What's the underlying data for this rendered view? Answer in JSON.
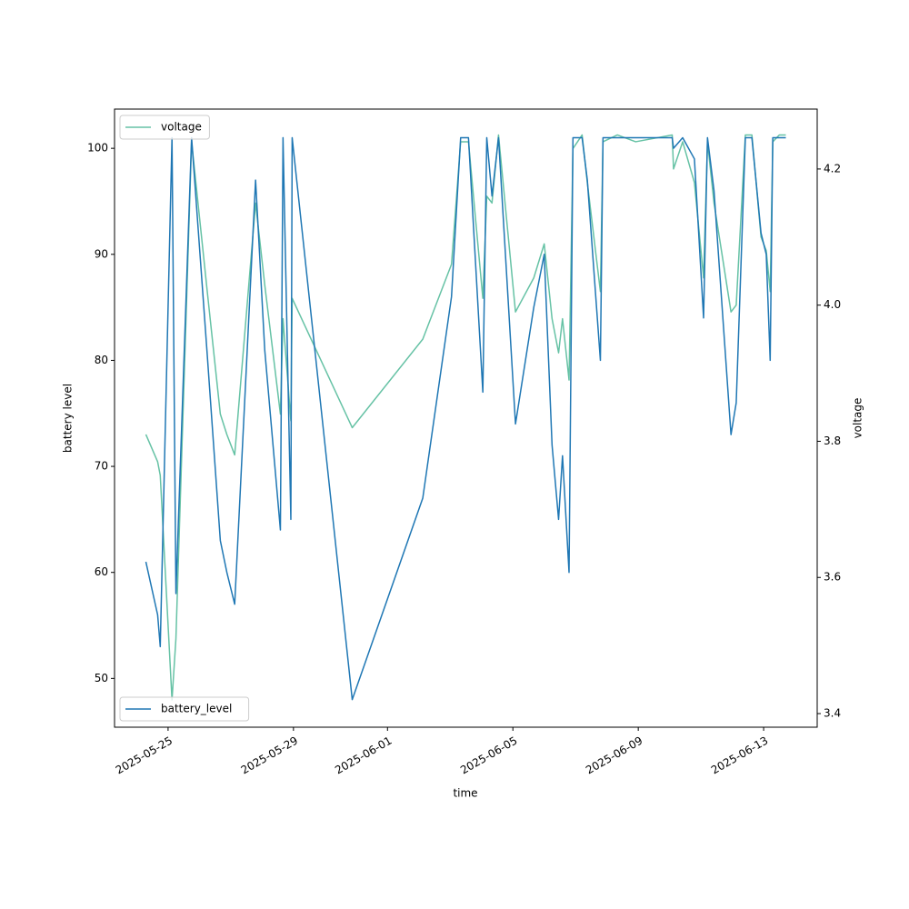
{
  "chart_data": {
    "type": "line",
    "x_label": "time",
    "y_label": "battery level",
    "y2_label": "voltage",
    "x": [
      "2025-05-24 07:00",
      "2025-05-24 16:00",
      "2025-05-24 18:00",
      "2025-05-25 03:00",
      "2025-05-25 06:00",
      "2025-05-25 18:00",
      "2025-05-26 06:00",
      "2025-05-26 16:00",
      "2025-05-26 21:00",
      "2025-05-27 03:00",
      "2025-05-27 19:00",
      "2025-05-28 02:00",
      "2025-05-28 14:00",
      "2025-05-28 16:00",
      "2025-05-28 22:00",
      "2025-05-28 23:00",
      "2025-05-30 21:00",
      "2025-06-02 03:00",
      "2025-06-03 01:00",
      "2025-06-03 08:00",
      "2025-06-03 14:00",
      "2025-06-04 01:00",
      "2025-06-04 04:00",
      "2025-06-04 08:00",
      "2025-06-04 13:00",
      "2025-06-05 02:00",
      "2025-06-05 16:00",
      "2025-06-06 00:00",
      "2025-06-06 06:00",
      "2025-06-06 11:00",
      "2025-06-06 14:00",
      "2025-06-06 19:00",
      "2025-06-06 22:00",
      "2025-06-07 05:00",
      "2025-06-07 09:00",
      "2025-06-07 19:00",
      "2025-06-07 21:00",
      "2025-06-08 08:00",
      "2025-06-08 22:00",
      "2025-06-10 02:00",
      "2025-06-10 03:00",
      "2025-06-10 10:00",
      "2025-06-10 19:00",
      "2025-06-11 02:00",
      "2025-06-11 05:00",
      "2025-06-11 10:00",
      "2025-06-11 23:00",
      "2025-06-12 03:00",
      "2025-06-12 10:00",
      "2025-06-12 15:00",
      "2025-06-12 22:00",
      "2025-06-13 02:00",
      "2025-06-13 05:00",
      "2025-06-13 07:00",
      "2025-06-13 12:00",
      "2025-06-13 17:00"
    ],
    "series": [
      {
        "name": "battery_level",
        "color": "#1f77b4",
        "axis": "y",
        "legend": "lower left",
        "values": [
          61,
          56,
          53,
          101,
          58,
          101,
          80.5,
          63,
          60,
          57,
          97,
          81,
          64,
          101,
          65,
          101,
          48,
          67,
          86,
          101,
          101,
          77,
          101,
          95.5,
          101,
          74,
          85,
          90,
          72,
          65,
          71,
          60,
          101,
          101,
          97,
          80,
          101,
          101,
          101,
          101,
          100,
          101,
          99,
          84,
          101,
          96,
          73,
          76,
          101,
          101,
          92,
          90,
          80,
          101,
          101,
          101
        ]
      },
      {
        "name": "voltage",
        "color": "#66c2a5",
        "axis": "y2",
        "legend": "upper left",
        "values": [
          3.81,
          3.77,
          3.75,
          3.42,
          3.51,
          4.24,
          4.02,
          3.84,
          3.81,
          3.78,
          4.15,
          4.03,
          3.84,
          3.98,
          3.83,
          4.01,
          3.82,
          3.95,
          4.06,
          4.24,
          4.24,
          4.01,
          4.16,
          4.15,
          4.25,
          3.99,
          4.04,
          4.09,
          3.98,
          3.93,
          3.98,
          3.89,
          4.23,
          4.25,
          4.18,
          4.02,
          4.24,
          4.25,
          4.24,
          4.25,
          4.2,
          4.24,
          4.18,
          4.04,
          4.24,
          4.15,
          3.99,
          4.0,
          4.25,
          4.25,
          4.1,
          4.08,
          4.02,
          4.24,
          4.25,
          4.25
        ]
      }
    ],
    "xlim": [
      "2025-05-23 07:00",
      "2025-06-14 17:00"
    ],
    "xticks": [
      "2025-05-25",
      "2025-05-29",
      "2025-06-01",
      "2025-06-05",
      "2025-06-09",
      "2025-06-13"
    ],
    "ylim": [
      45.4,
      103.7
    ],
    "yticks": [
      50,
      60,
      70,
      80,
      90,
      100
    ],
    "y2lim": [
      3.38,
      4.288
    ],
    "y2ticks": [
      3.4,
      3.6,
      3.8,
      {
        "value": 4,
        "label": "4.0"
      },
      4.2
    ],
    "grid": false
  }
}
